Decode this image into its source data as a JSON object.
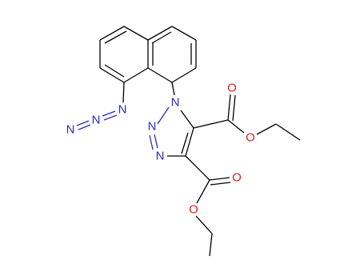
{
  "atoms": [
    {
      "label": "N"
    },
    {
      "label": "N"
    },
    {
      "label": "N"
    },
    {
      "label": "N"
    },
    {
      "label": "N"
    },
    {
      "label": "N"
    },
    {
      "label": "O"
    },
    {
      "label": "O"
    },
    {
      "label": "O"
    },
    {
      "label": "O"
    }
  ]
}
